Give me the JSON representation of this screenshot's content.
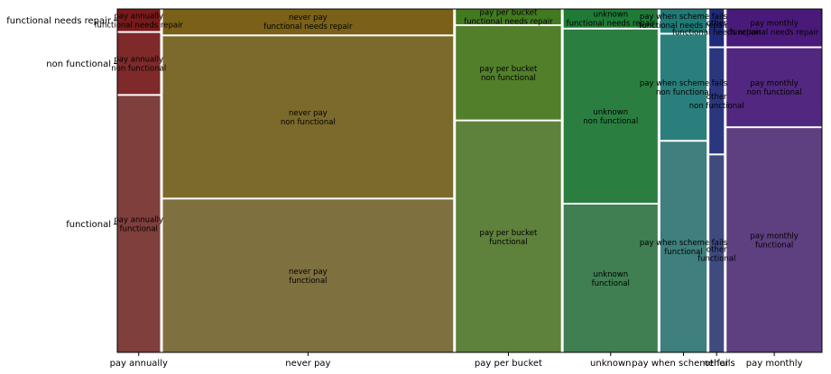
{
  "chart_data": {
    "type": "mosaic",
    "title": "",
    "xlabel": "",
    "ylabel": "",
    "categories": [
      "pay annually",
      "never pay",
      "pay per bucket",
      "unknown",
      "pay when scheme fails",
      "other",
      "pay monthly"
    ],
    "column_shares": [
      0.062,
      0.42,
      0.152,
      0.136,
      0.067,
      0.021,
      0.138
    ],
    "status_levels": [
      "functional",
      "non functional",
      "functional needs repair"
    ],
    "tick_labels_y": [
      "functional",
      "non functional",
      "functional needs repair"
    ],
    "colors": {
      "pay annually": "#7f3f3c",
      "never pay": "#7f7040",
      "pay per bucket": "#5e813c",
      "unknown": "#3f7f52",
      "pay when scheme fails": "#3f7f7d",
      "other": "#3f4a7f",
      "pay monthly": "#5e3f7f"
    },
    "cells": [
      {
        "column": "pay annually",
        "status": "functional",
        "share": 0.755,
        "label": "pay annually\nfunctional"
      },
      {
        "column": "pay annually",
        "status": "non functional",
        "share": 0.18,
        "label": "pay annually\nnon functional"
      },
      {
        "column": "pay annually",
        "status": "functional needs repair",
        "share": 0.065,
        "label": "pay annually\nfunctional needs repair"
      },
      {
        "column": "never pay",
        "status": "functional",
        "share": 0.45,
        "label": "never pay\nfunctional"
      },
      {
        "column": "never pay",
        "status": "non functional",
        "share": 0.475,
        "label": "never pay\nnon functional"
      },
      {
        "column": "never pay",
        "status": "functional needs repair",
        "share": 0.075,
        "label": "never pay\nfunctional needs repair"
      },
      {
        "column": "pay per bucket",
        "status": "functional",
        "share": 0.68,
        "label": "pay per bucket\nfunctional"
      },
      {
        "column": "pay per bucket",
        "status": "non functional",
        "share": 0.275,
        "label": "pay per bucket\nnon functional"
      },
      {
        "column": "pay per bucket",
        "status": "functional needs repair",
        "share": 0.045,
        "label": "pay per bucket\nfunctional needs repair"
      },
      {
        "column": "unknown",
        "status": "functional",
        "share": 0.435,
        "label": "unknown\nfunctional"
      },
      {
        "column": "unknown",
        "status": "non functional",
        "share": 0.51,
        "label": "unknown\nnon functional"
      },
      {
        "column": "unknown",
        "status": "functional needs repair",
        "share": 0.055,
        "label": "unknown\nfunctional needs repair"
      },
      {
        "column": "pay when scheme fails",
        "status": "functional",
        "share": 0.62,
        "label": "pay when scheme fails\nfunctional"
      },
      {
        "column": "pay when scheme fails",
        "status": "non functional",
        "share": 0.31,
        "label": "pay when scheme fails\nnon functional"
      },
      {
        "column": "pay when scheme fails",
        "status": "functional needs repair",
        "share": 0.07,
        "label": "pay when scheme fails\nfunctional needs repair"
      },
      {
        "column": "other",
        "status": "functional",
        "share": 0.58,
        "label": "other\nfunctional"
      },
      {
        "column": "other",
        "status": "non functional",
        "share": 0.31,
        "label": "other\nnon functional"
      },
      {
        "column": "other",
        "status": "functional needs repair",
        "share": 0.11,
        "label": "other\nfunctional needs repair"
      },
      {
        "column": "pay monthly",
        "status": "functional",
        "share": 0.66,
        "label": "pay monthly\nfunctional"
      },
      {
        "column": "pay monthly",
        "status": "non functional",
        "share": 0.23,
        "label": "pay monthly\nnon functional"
      },
      {
        "column": "pay monthly",
        "status": "functional needs repair",
        "share": 0.11,
        "label": "pay monthly\nfunctional needs repair"
      }
    ]
  }
}
